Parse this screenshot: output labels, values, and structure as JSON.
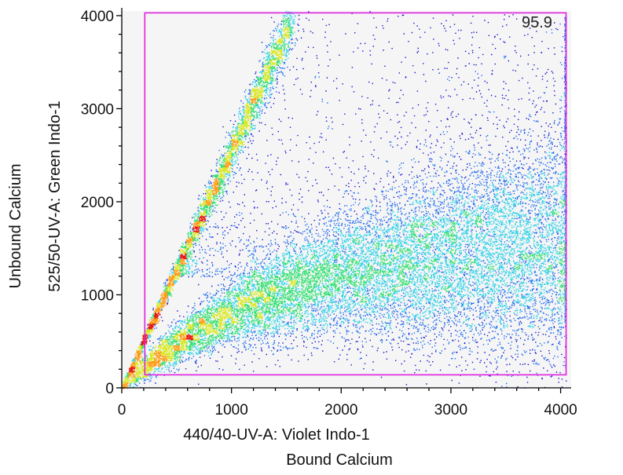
{
  "chart_data": {
    "type": "scatter",
    "subtype": "flow-cytometry density dot plot with gate",
    "x": {
      "label": "440/40-UV-A: Violet Indo-1",
      "sublabel": "Bound Calcium",
      "range": [
        0,
        4096
      ],
      "ticks": [
        0,
        1000,
        2000,
        3000,
        4000
      ],
      "tick_labels": [
        "0",
        "1000",
        "2000",
        "3000",
        "4000"
      ]
    },
    "y": {
      "label": "525/50-UV-A: Green Indo-1",
      "sublabel": "Unbound Calcium",
      "range": [
        0,
        4050
      ],
      "ticks": [
        0,
        1000,
        2000,
        3000,
        4000
      ],
      "tick_labels": [
        "0",
        "1000",
        "2000",
        "3000",
        "4000"
      ]
    },
    "gate": {
      "shape": "rectangle",
      "x_range": [
        210,
        4050
      ],
      "y_range": [
        140,
        4030
      ],
      "color": "#e020e0",
      "label": "95.9"
    },
    "populations": [
      {
        "kind": "main",
        "center": [
          1750,
          850
        ],
        "description_only": true
      },
      {
        "kind": "diagonal",
        "slope": 2.55
      }
    ],
    "colors": {
      "background": "#f5f5f5",
      "gate": "#e020e0",
      "density_scale": [
        "#1010d0",
        "#1e6cf0",
        "#2ad0e8",
        "#30e070",
        "#d8e81c",
        "#ff9a10",
        "#e81810"
      ]
    },
    "grid": false
  }
}
